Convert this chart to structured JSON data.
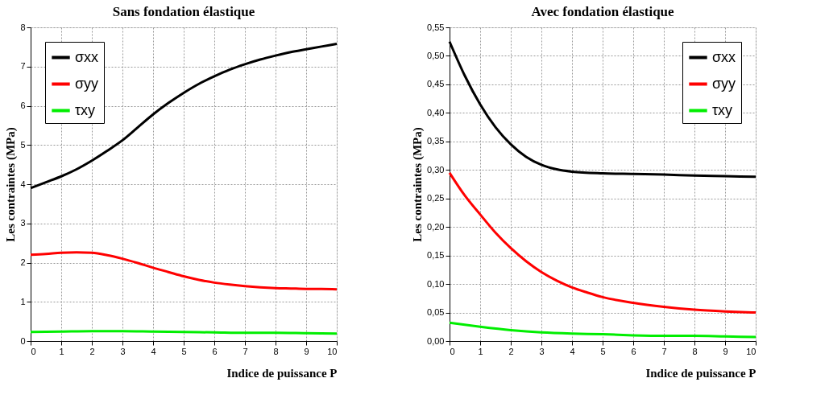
{
  "chart_data": [
    {
      "type": "line",
      "title": "Sans fondation élastique",
      "xlabel": "Indice de puissance P",
      "ylabel": "Les contraintes (MPa)",
      "xlim": [
        0,
        10
      ],
      "xticks": [
        0,
        1,
        2,
        3,
        4,
        5,
        6,
        7,
        8,
        9,
        10
      ],
      "ylim": [
        0,
        8
      ],
      "yticks": [
        0,
        1,
        2,
        3,
        4,
        5,
        6,
        7,
        8
      ],
      "grid": true,
      "legend": "top left",
      "line_style": "solid",
      "marker": "none",
      "series": [
        {
          "name": "σxx",
          "color": "#000000",
          "x": [
            0,
            0.5,
            1,
            1.5,
            2,
            2.5,
            3,
            3.5,
            4,
            4.5,
            5,
            5.5,
            6,
            6.5,
            7,
            7.5,
            8,
            8.5,
            9,
            9.5,
            10
          ],
          "values": [
            3.9,
            4.05,
            4.2,
            4.38,
            4.6,
            4.85,
            5.12,
            5.45,
            5.78,
            6.07,
            6.33,
            6.56,
            6.75,
            6.92,
            7.06,
            7.18,
            7.28,
            7.37,
            7.44,
            7.51,
            7.58
          ]
        },
        {
          "name": "σyy",
          "color": "#ff0000",
          "x": [
            0,
            0.5,
            1,
            1.5,
            2,
            2.5,
            3,
            3.5,
            4,
            4.5,
            5,
            5.5,
            6,
            6.5,
            7,
            7.5,
            8,
            8.5,
            9,
            9.5,
            10
          ],
          "values": [
            2.2,
            2.22,
            2.25,
            2.26,
            2.25,
            2.19,
            2.1,
            1.99,
            1.87,
            1.76,
            1.65,
            1.56,
            1.49,
            1.44,
            1.4,
            1.37,
            1.35,
            1.34,
            1.33,
            1.33,
            1.32
          ]
        },
        {
          "name": "τxy",
          "color": "#00ee00",
          "x": [
            0,
            1,
            2,
            3,
            4,
            5,
            6,
            7,
            8,
            9,
            10
          ],
          "values": [
            0.23,
            0.24,
            0.25,
            0.25,
            0.24,
            0.23,
            0.22,
            0.21,
            0.21,
            0.2,
            0.19
          ]
        }
      ]
    },
    {
      "type": "line",
      "title": "Avec fondation élastique",
      "xlabel": "Indice de puissance P",
      "ylabel": "Les contraintes (MPa)",
      "xlim": [
        0,
        10
      ],
      "xticks": [
        0,
        1,
        2,
        3,
        4,
        5,
        6,
        7,
        8,
        9,
        10
      ],
      "ylim": [
        0,
        0.55
      ],
      "yticks": [
        {
          "value": 0,
          "label": "0,00"
        },
        {
          "value": 0.05,
          "label": "0,05"
        },
        {
          "value": 0.1,
          "label": "0,10"
        },
        {
          "value": 0.15,
          "label": "0,15"
        },
        {
          "value": 0.2,
          "label": "0,20"
        },
        {
          "value": 0.25,
          "label": "0,25"
        },
        {
          "value": 0.3,
          "label": "0,30"
        },
        {
          "value": 0.35,
          "label": "0,35"
        },
        {
          "value": 0.4,
          "label": "0,40"
        },
        {
          "value": 0.45,
          "label": "0,45"
        },
        {
          "value": 0.5,
          "label": "0,50"
        },
        {
          "value": 0.55,
          "label": "0,55"
        }
      ],
      "grid": true,
      "legend": "top right",
      "line_style": "solid",
      "marker": "none",
      "series": [
        {
          "name": "σxx",
          "color": "#000000",
          "x": [
            0,
            0.5,
            1,
            1.5,
            2,
            2.5,
            3,
            3.5,
            4,
            5,
            6,
            7,
            8,
            9,
            10
          ],
          "values": [
            0.525,
            0.465,
            0.415,
            0.375,
            0.345,
            0.323,
            0.309,
            0.301,
            0.297,
            0.294,
            0.293,
            0.292,
            0.29,
            0.289,
            0.288
          ]
        },
        {
          "name": "σyy",
          "color": "#ff0000",
          "x": [
            0,
            0.5,
            1,
            1.5,
            2,
            2.5,
            3,
            3.5,
            4,
            4.5,
            5,
            6,
            7,
            8,
            9,
            10
          ],
          "values": [
            0.295,
            0.255,
            0.222,
            0.19,
            0.163,
            0.14,
            0.121,
            0.106,
            0.094,
            0.085,
            0.077,
            0.067,
            0.06,
            0.055,
            0.052,
            0.05
          ]
        },
        {
          "name": "τxy",
          "color": "#00ee00",
          "x": [
            0,
            1,
            2,
            3,
            4,
            5,
            6,
            7,
            8,
            9,
            10
          ],
          "values": [
            0.032,
            0.025,
            0.019,
            0.015,
            0.013,
            0.012,
            0.01,
            0.009,
            0.009,
            0.008,
            0.007
          ]
        }
      ]
    }
  ]
}
